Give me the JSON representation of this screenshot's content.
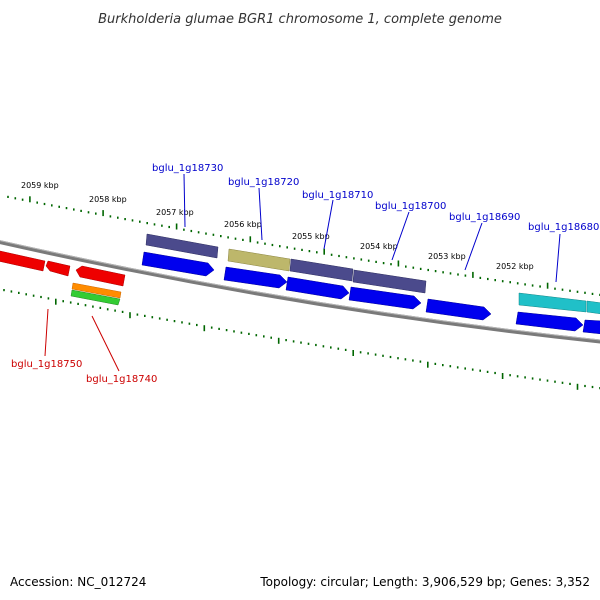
{
  "title": "Burkholderia glumae BGR1 chromosome 1, complete genome",
  "footer": {
    "accession": "Accession: NC_012724",
    "summary": "Topology: circular; Length: 3,906,529 bp; Genes: 3,352"
  },
  "ticks": [
    "2059 kbp",
    "2058 kbp",
    "2057 kbp",
    "2056 kbp",
    "2055 kbp",
    "2054 kbp",
    "2053 kbp",
    "2052 kbp"
  ],
  "colors": {
    "forward_label": "#0000cc",
    "reverse_label": "#cc0000",
    "backbone": "#808080",
    "tick": "#006600"
  },
  "forward_genes": [
    {
      "label": "bglu_1g18730"
    },
    {
      "label": "bglu_1g18720"
    },
    {
      "label": "bglu_1g18710"
    },
    {
      "label": "bglu_1g18700"
    },
    {
      "label": "bglu_1g18690"
    },
    {
      "label": "bglu_1g18680"
    }
  ],
  "reverse_genes": [
    {
      "label": "bglu_1g18750"
    },
    {
      "label": "bglu_1g18740"
    }
  ]
}
